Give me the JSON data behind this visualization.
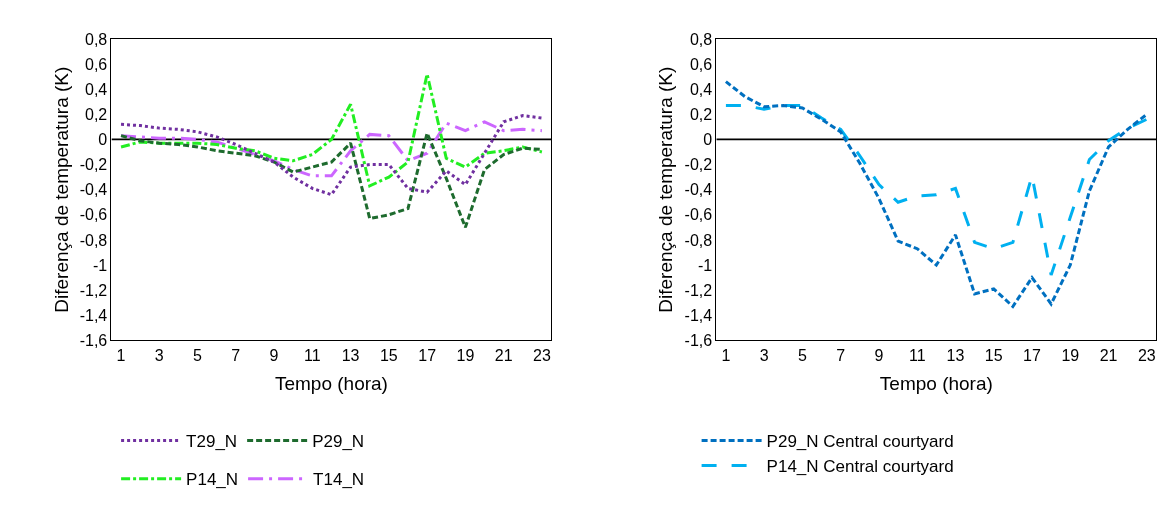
{
  "chart_data": [
    {
      "type": "line",
      "xlabel": "Tempo (hora)",
      "ylabel": "Diferença de temperatura (K)",
      "x": [
        1,
        2,
        3,
        4,
        5,
        6,
        7,
        8,
        9,
        10,
        11,
        12,
        13,
        14,
        15,
        16,
        17,
        18,
        19,
        20,
        21,
        22,
        23
      ],
      "xlim": [
        0.5,
        23.5
      ],
      "xticks": [
        1,
        3,
        5,
        7,
        9,
        11,
        13,
        15,
        17,
        19,
        21,
        23
      ],
      "ylim": [
        -1.6,
        0.8
      ],
      "yticks": [
        {
          "value": -1.6,
          "label": "-1,6"
        },
        {
          "value": -1.4,
          "label": "-1,4"
        },
        {
          "value": -1.2,
          "label": "-1,2"
        },
        {
          "value": -1,
          "label": "-1"
        },
        {
          "value": -0.8,
          "label": "-0,8"
        },
        {
          "value": -0.6,
          "label": "-0,6"
        },
        {
          "value": -0.4,
          "label": "-0,4"
        },
        {
          "value": -0.2,
          "label": "-0,2"
        },
        {
          "value": 0,
          "label": "0"
        },
        {
          "value": 0.2,
          "label": "0,2"
        },
        {
          "value": 0.4,
          "label": "0,4"
        },
        {
          "value": 0.6,
          "label": "0,6"
        },
        {
          "value": 0.8,
          "label": "0,8"
        }
      ],
      "grid": false,
      "legend": "bottom",
      "marker": "none",
      "ref_lines": [
        {
          "axis": "y",
          "value": 0,
          "color": "#000000",
          "line_style": "solid"
        }
      ],
      "series": [
        {
          "name": "T29_N",
          "color": "#7030a0",
          "line_style": "dotted",
          "values": [
            0.12,
            0.11,
            0.09,
            0.08,
            0.06,
            0.02,
            -0.04,
            -0.11,
            -0.18,
            -0.3,
            -0.39,
            -0.44,
            -0.22,
            -0.2,
            -0.2,
            -0.39,
            -0.42,
            -0.25,
            -0.36,
            -0.11,
            0.14,
            0.19,
            0.17
          ]
        },
        {
          "name": "P29_N",
          "color": "#1e6b2e",
          "line_style": "dashed",
          "values": [
            0.03,
            -0.01,
            -0.03,
            -0.04,
            -0.06,
            -0.09,
            -0.11,
            -0.13,
            -0.18,
            -0.26,
            -0.22,
            -0.18,
            -0.03,
            -0.63,
            -0.6,
            -0.55,
            0.05,
            -0.31,
            -0.7,
            -0.24,
            -0.12,
            -0.07,
            -0.08
          ]
        },
        {
          "name": "P14_N",
          "color": "#22ee22",
          "line_style": "dashdot",
          "values": [
            -0.06,
            -0.02,
            -0.03,
            -0.03,
            -0.03,
            -0.04,
            -0.07,
            -0.09,
            -0.15,
            -0.17,
            -0.12,
            0,
            0.28,
            -0.37,
            -0.3,
            -0.18,
            0.52,
            -0.15,
            -0.22,
            -0.11,
            -0.09,
            -0.06,
            -0.1
          ]
        },
        {
          "name": "T14_N",
          "color": "#cc66ff",
          "line_style": "longdashdot",
          "values": [
            0.03,
            0.02,
            0.01,
            0.01,
            0,
            -0.02,
            -0.07,
            -0.12,
            -0.17,
            -0.24,
            -0.29,
            -0.29,
            -0.09,
            0.04,
            0.03,
            -0.17,
            -0.11,
            0.13,
            0.07,
            0.14,
            0.07,
            0.08,
            0.07
          ]
        }
      ]
    },
    {
      "type": "line",
      "xlabel": "Tempo (hora)",
      "ylabel": "Diferença de temperatura (K)",
      "x": [
        1,
        2,
        3,
        4,
        5,
        6,
        7,
        8,
        9,
        10,
        11,
        12,
        13,
        14,
        15,
        16,
        17,
        18,
        19,
        20,
        21,
        22,
        23
      ],
      "xlim": [
        0.5,
        23.5
      ],
      "xticks": [
        1,
        3,
        5,
        7,
        9,
        11,
        13,
        15,
        17,
        19,
        21,
        23
      ],
      "ylim": [
        -1.6,
        0.8
      ],
      "yticks": [
        {
          "value": -1.6,
          "label": "-1,6"
        },
        {
          "value": -1.4,
          "label": "-1,4"
        },
        {
          "value": -1.2,
          "label": "-1,2"
        },
        {
          "value": -1,
          "label": "-1"
        },
        {
          "value": -0.8,
          "label": "-0,8"
        },
        {
          "value": -0.6,
          "label": "-0,6"
        },
        {
          "value": -0.4,
          "label": "-0,4"
        },
        {
          "value": -0.2,
          "label": "-0,2"
        },
        {
          "value": 0,
          "label": "0"
        },
        {
          "value": 0.2,
          "label": "0,2"
        },
        {
          "value": 0.4,
          "label": "0,4"
        },
        {
          "value": 0.6,
          "label": "0,6"
        },
        {
          "value": 0.8,
          "label": "0,8"
        }
      ],
      "grid": false,
      "legend": "bottom",
      "marker": "none",
      "ref_lines": [
        {
          "axis": "y",
          "value": 0,
          "color": "#000000",
          "line_style": "solid"
        }
      ],
      "series": [
        {
          "name": "P29_N Central courtyard",
          "color": "#0070c0",
          "line_style": "dashed",
          "values": [
            0.46,
            0.34,
            0.26,
            0.27,
            0.25,
            0.16,
            0.06,
            -0.19,
            -0.47,
            -0.81,
            -0.87,
            -1.0,
            -0.76,
            -1.23,
            -1.19,
            -1.33,
            -1.1,
            -1.31,
            -1.0,
            -0.41,
            -0.06,
            0.08,
            0.2
          ]
        },
        {
          "name": "P14_N Central courtyard",
          "color": "#00b0f0",
          "line_style": "longdash",
          "values": [
            0.27,
            0.27,
            0.24,
            0.27,
            0.27,
            0.17,
            0.08,
            -0.13,
            -0.36,
            -0.5,
            -0.45,
            -0.44,
            -0.39,
            -0.82,
            -0.87,
            -0.82,
            -0.29,
            -1.08,
            -0.62,
            -0.16,
            -0.01,
            0.09,
            0.16
          ]
        }
      ]
    }
  ]
}
